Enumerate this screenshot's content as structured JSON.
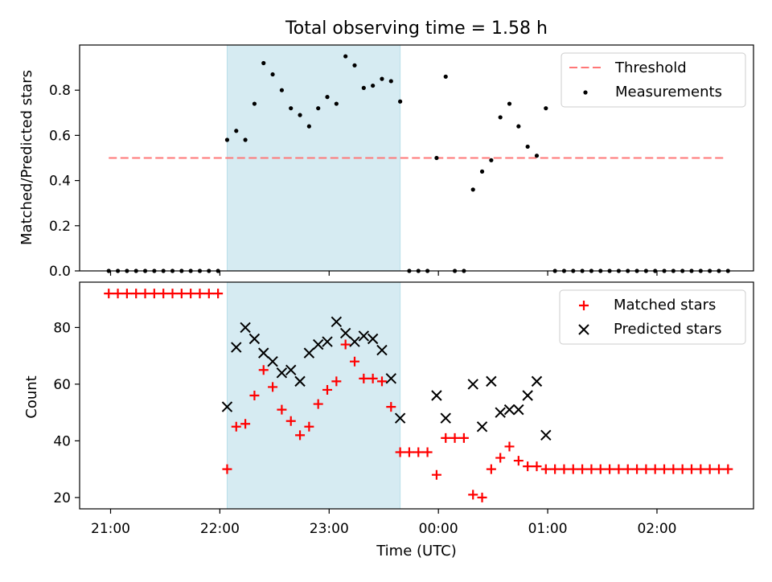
{
  "figure": {
    "title": "Total observing time = 1.58 h",
    "xlabel": "Time (UTC)"
  },
  "chart_data": [
    {
      "type": "scatter",
      "ylabel": "Matched/Predicted stars",
      "xlim": [
        "20:43",
        "02:53"
      ],
      "ylim": [
        0,
        1.0
      ],
      "yticks": [
        0.0,
        0.2,
        0.4,
        0.6,
        0.8
      ],
      "yticklabels": [
        "0.0",
        "0.2",
        "0.4",
        "0.6",
        "0.8"
      ],
      "xticks": [
        "21:00",
        "22:00",
        "23:00",
        "00:00",
        "01:00",
        "02:00"
      ],
      "shaded_span": {
        "start": "22:04",
        "end": "23:39",
        "color": "#add8e6"
      },
      "legend": {
        "position": "top-right",
        "entries": [
          "Threshold",
          "Measurements"
        ]
      },
      "threshold": {
        "name": "Threshold",
        "y": 0.5,
        "x_start": "20:59",
        "x_end": "02:38",
        "color": "#ff7777",
        "style": "dashed"
      },
      "series": [
        {
          "name": "Measurements",
          "marker": "dot",
          "color": "#000000",
          "x": [
            "20:59",
            "21:04",
            "21:09",
            "21:14",
            "21:19",
            "21:24",
            "21:29",
            "21:34",
            "21:39",
            "21:44",
            "21:49",
            "21:54",
            "21:59",
            "22:04",
            "22:09",
            "22:14",
            "22:19",
            "22:24",
            "22:29",
            "22:34",
            "22:39",
            "22:44",
            "22:49",
            "22:54",
            "22:59",
            "23:04",
            "23:09",
            "23:14",
            "23:19",
            "23:24",
            "23:29",
            "23:34",
            "23:39",
            "23:44",
            "23:49",
            "23:54",
            "23:59",
            "00:04",
            "00:09",
            "00:14",
            "00:19",
            "00:24",
            "00:29",
            "00:34",
            "00:39",
            "00:44",
            "00:49",
            "00:54",
            "00:59",
            "01:04",
            "01:09",
            "01:14",
            "01:19",
            "01:24",
            "01:29",
            "01:34",
            "01:39",
            "01:44",
            "01:49",
            "01:54",
            "01:59",
            "02:04",
            "02:09",
            "02:14",
            "02:19",
            "02:24",
            "02:29",
            "02:34",
            "02:39"
          ],
          "y": [
            0,
            0,
            0,
            0,
            0,
            0,
            0,
            0,
            0,
            0,
            0,
            0,
            0,
            0.58,
            0.62,
            0.58,
            0.74,
            0.92,
            0.87,
            0.8,
            0.72,
            0.69,
            0.64,
            0.72,
            0.77,
            0.74,
            0.95,
            0.91,
            0.81,
            0.82,
            0.85,
            0.84,
            0.75,
            0,
            0,
            0,
            0.5,
            0.86,
            0,
            0,
            0.36,
            0.44,
            0.49,
            0.68,
            0.74,
            0.64,
            0.55,
            0.51,
            0.72,
            0,
            0,
            0,
            0,
            0,
            0,
            0,
            0,
            0,
            0,
            0,
            0,
            0,
            0,
            0,
            0,
            0,
            0,
            0,
            0
          ]
        }
      ]
    },
    {
      "type": "scatter",
      "ylabel": "Count",
      "xlabel": "Time (UTC)",
      "xlim": [
        "20:43",
        "02:53"
      ],
      "ylim": [
        16,
        96
      ],
      "yticks": [
        20,
        40,
        60,
        80
      ],
      "yticklabels": [
        "20",
        "40",
        "60",
        "80"
      ],
      "xticks": [
        "21:00",
        "22:00",
        "23:00",
        "00:00",
        "01:00",
        "02:00"
      ],
      "shaded_span": {
        "start": "22:04",
        "end": "23:39",
        "color": "#add8e6"
      },
      "legend": {
        "position": "top-right",
        "entries": [
          "Matched stars",
          "Predicted stars"
        ]
      },
      "series": [
        {
          "name": "Matched stars",
          "marker": "plus",
          "color": "#ff0000",
          "x": [
            "20:59",
            "21:04",
            "21:09",
            "21:14",
            "21:19",
            "21:24",
            "21:29",
            "21:34",
            "21:39",
            "21:44",
            "21:49",
            "21:54",
            "21:59",
            "22:04",
            "22:09",
            "22:14",
            "22:19",
            "22:24",
            "22:29",
            "22:34",
            "22:39",
            "22:44",
            "22:49",
            "22:54",
            "22:59",
            "23:04",
            "23:09",
            "23:14",
            "23:19",
            "23:24",
            "23:29",
            "23:34",
            "23:39",
            "23:44",
            "23:49",
            "23:54",
            "23:59",
            "00:04",
            "00:09",
            "00:14",
            "00:19",
            "00:24",
            "00:29",
            "00:34",
            "00:39",
            "00:44",
            "00:49",
            "00:54",
            "00:59",
            "01:04",
            "01:09",
            "01:14",
            "01:19",
            "01:24",
            "01:29",
            "01:34",
            "01:39",
            "01:44",
            "01:49",
            "01:54",
            "01:59",
            "02:04",
            "02:09",
            "02:14",
            "02:19",
            "02:24",
            "02:29",
            "02:34",
            "02:39"
          ],
          "y": [
            92,
            92,
            92,
            92,
            92,
            92,
            92,
            92,
            92,
            92,
            92,
            92,
            92,
            30,
            45,
            46,
            56,
            65,
            59,
            51,
            47,
            42,
            45,
            53,
            58,
            61,
            74,
            68,
            62,
            62,
            61,
            52,
            36,
            36,
            36,
            36,
            28,
            41,
            41,
            41,
            21,
            20,
            30,
            34,
            38,
            33,
            31,
            31,
            30,
            30,
            30,
            30,
            30,
            30,
            30,
            30,
            30,
            30,
            30,
            30,
            30,
            30,
            30,
            30,
            30,
            30,
            30,
            30,
            30
          ]
        },
        {
          "name": "Predicted stars",
          "marker": "x",
          "color": "#000000",
          "x": [
            "22:04",
            "22:09",
            "22:14",
            "22:19",
            "22:24",
            "22:29",
            "22:34",
            "22:39",
            "22:44",
            "22:49",
            "22:54",
            "22:59",
            "23:04",
            "23:09",
            "23:14",
            "23:19",
            "23:24",
            "23:29",
            "23:34",
            "23:39",
            "23:59",
            "00:04",
            "00:19",
            "00:24",
            "00:29",
            "00:34",
            "00:39",
            "00:44",
            "00:49",
            "00:54",
            "00:59"
          ],
          "y": [
            52,
            73,
            80,
            76,
            71,
            68,
            64,
            65,
            61,
            71,
            74,
            75,
            82,
            78,
            75,
            77,
            76,
            72,
            62,
            48,
            56,
            48,
            60,
            45,
            61,
            50,
            51,
            51,
            56,
            61,
            42
          ]
        }
      ]
    }
  ]
}
